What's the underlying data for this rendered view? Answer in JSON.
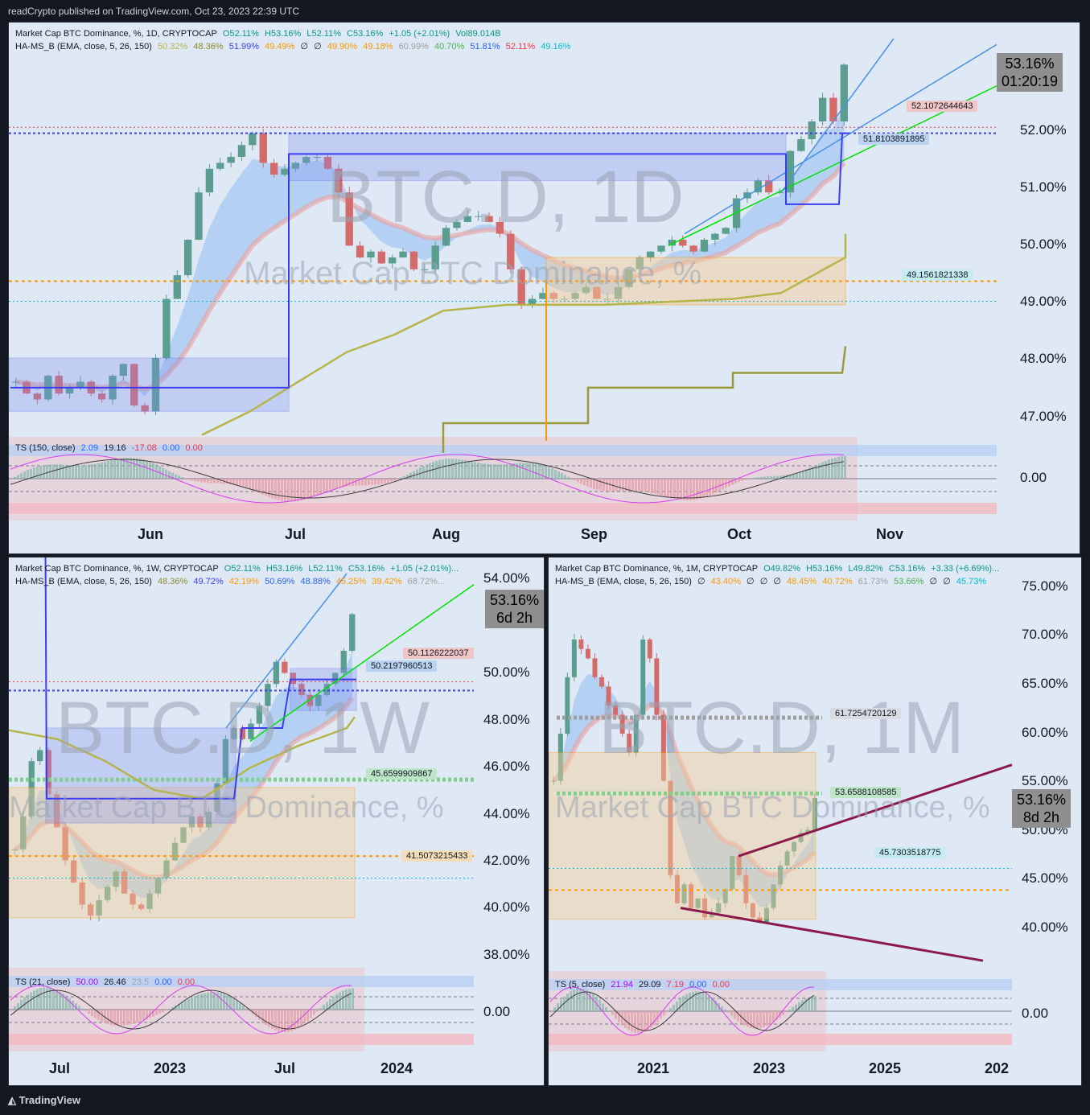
{
  "header": {
    "published": "readCrypto published on TradingView.com, Oct 23, 2023 22:39 UTC"
  },
  "footer": {
    "brand": "TradingView"
  },
  "colors": {
    "background": "#131722",
    "panel": "#dfe9f5",
    "up": "#5b9e8f",
    "down": "#d36b6b",
    "box": "#7e8ef0",
    "orange": "#ff9800",
    "olive": "#b5b54a",
    "green": "#00e000",
    "blue": "#4a90e2",
    "maroon": "#8b1a4a"
  },
  "chart_data": [
    {
      "type": "candlestick",
      "title": "Market Cap BTC Dominance, %, 1D, CRYPTOCAP",
      "ohlc_text": {
        "o": "O52.11%",
        "h": "H53.16%",
        "l": "L52.11%",
        "c": "C53.16%",
        "chg": "+1.05 (+2.01%)",
        "vol": "Vol89.014B"
      },
      "indicator": "HA-MS_B (EMA, close, 5, 26, 150)",
      "indicator_values": [
        "50.32%",
        "48.36%",
        "51.99%",
        "49.49%",
        "∅",
        "∅",
        "49.90%",
        "49.18%",
        "60.99%",
        "40.70%",
        "51.81%",
        "52.11%",
        "49.16%"
      ],
      "watermark": "BTC.D, 1D",
      "watermark2": "Market Cap BTC Dominance, %",
      "price_axis": [
        "52.00%",
        "51.00%",
        "50.00%",
        "49.00%",
        "48.00%",
        "47.00%"
      ],
      "osc_axis": [
        "0.00"
      ],
      "time_axis": [
        "Jun",
        "Jul",
        "Aug",
        "Sep",
        "Oct",
        "Nov"
      ],
      "current": {
        "price": "53.16%",
        "countdown": "01:20:19"
      },
      "levels": [
        "52.1072644643",
        "51.8103891895",
        "49.1561821338"
      ],
      "oscillator": {
        "name": "TS (150, close)",
        "values": [
          "2.09",
          "19.16",
          "-17.08",
          "0.00",
          "0.00"
        ]
      },
      "close_series": [
        47.8,
        47.6,
        47.5,
        47.9,
        47.6,
        47.7,
        47.8,
        47.6,
        47.5,
        47.9,
        48.1,
        47.4,
        47.3,
        48.2,
        49.2,
        49.6,
        50.2,
        51.0,
        51.4,
        51.5,
        51.6,
        51.8,
        52.0,
        51.5,
        51.3,
        51.4,
        51.5,
        51.6,
        51.6,
        51.4,
        51.0,
        50.1,
        49.9,
        50.0,
        49.8,
        49.9,
        50.0,
        49.7,
        49.7,
        50.1,
        50.4,
        50.5,
        50.6,
        50.6,
        50.5,
        50.3,
        49.7,
        49.1,
        49.2,
        49.3,
        49.2,
        49.2,
        49.3,
        49.4,
        49.2,
        49.2,
        49.4,
        49.7,
        49.9,
        50.0,
        50.1,
        50.2,
        50.1,
        50.0,
        50.2,
        50.3,
        50.4,
        50.9,
        51.0,
        51.2,
        51.0,
        51.0,
        51.7,
        51.9,
        52.2,
        52.6,
        52.2,
        53.16
      ],
      "ylim": [
        46.8,
        53.6
      ]
    },
    {
      "type": "candlestick",
      "title": "Market Cap BTC Dominance, %, 1W, CRYPTOCAP",
      "ohlc_text": {
        "o": "O52.11%",
        "h": "H53.16%",
        "l": "L52.11%",
        "c": "C53.16%",
        "chg": "+1.05 (+2.01%)..."
      },
      "indicator": "HA-MS_B (EMA, close, 5, 26, 150)",
      "indicator_values": [
        "48.36%",
        "49.72%",
        "42.19%",
        "50.69%",
        "48.88%",
        "45.25%",
        "39.42%",
        "68.72%..."
      ],
      "watermark": "BTC.D, 1W",
      "watermark2": "Market Cap BTC Dominance, %",
      "price_axis": [
        "54.00%",
        "50.00%",
        "48.00%",
        "46.00%",
        "44.00%",
        "42.00%",
        "40.00%",
        "38.00%"
      ],
      "osc_axis": [
        "0.00"
      ],
      "time_axis": [
        "Jul",
        "2023",
        "Jul",
        "2024"
      ],
      "current": {
        "price": "53.16%",
        "countdown": "6d 2h"
      },
      "levels": [
        "50.1126222037",
        "50.2197960513",
        "45.6599909867",
        "41.5073215433"
      ],
      "oscillator": {
        "name": "TS (21, close)",
        "values": [
          "50.00",
          "26.46",
          "23.5",
          "0.00",
          "0.00"
        ]
      },
      "close_series": [
        42.5,
        44.0,
        46.5,
        47.0,
        45.0,
        43.5,
        42.0,
        41.0,
        40.0,
        39.5,
        40.2,
        40.8,
        41.5,
        40.5,
        40.0,
        39.8,
        40.5,
        41.2,
        42.0,
        42.8,
        43.5,
        44.0,
        43.5,
        44.2,
        45.5,
        47.5,
        48.0,
        47.5,
        48.2,
        49.0,
        50.0,
        51.0,
        50.5,
        50.0,
        49.5,
        49.0,
        49.5,
        50.0,
        50.5,
        51.5,
        53.16
      ],
      "ylim": [
        37.5,
        55.0
      ]
    },
    {
      "type": "candlestick",
      "title": "Market Cap BTC Dominance, %, 1M, CRYPTOCAP",
      "ohlc_text": {
        "o": "O49.82%",
        "h": "H53.16%",
        "l": "L49.82%",
        "c": "C53.16%",
        "chg": "+3.33 (+6.69%)..."
      },
      "indicator": "HA-MS_B (EMA, close, 5, 26, 150)",
      "indicator_values": [
        "∅",
        "43.40%",
        "∅",
        "∅",
        "∅",
        "48.45%",
        "40.72%",
        "61.73%",
        "53.66%",
        "∅",
        "∅",
        "45.73%"
      ],
      "watermark": "BTC.D, 1M",
      "watermark2": "Market Cap BTC Dominance, %",
      "price_axis": [
        "75.00%",
        "70.00%",
        "65.00%",
        "60.00%",
        "55.00%",
        "50.00%",
        "45.00%",
        "40.00%"
      ],
      "osc_axis": [
        "0.00"
      ],
      "time_axis": [
        "2021",
        "2023",
        "2025",
        "202"
      ],
      "current": {
        "price": "53.16%",
        "countdown": "8d 2h"
      },
      "levels": [
        "61.7254720129",
        "53.6588108585",
        "45.7303518775"
      ],
      "oscillator": {
        "name": "TS (5, close)",
        "values": [
          "21.94",
          "29.09",
          "7.19",
          "0.00",
          "0.00"
        ]
      },
      "close_series": [
        55.0,
        60.0,
        66.0,
        70.0,
        69.0,
        68.0,
        66.0,
        65.0,
        63.0,
        62.0,
        60.0,
        58.0,
        62.0,
        70.0,
        68.0,
        62.0,
        55.0,
        45.0,
        42.0,
        44.0,
        41.5,
        42.5,
        40.5,
        41.0,
        42.0,
        43.5,
        47.0,
        45.0,
        42.0,
        40.5,
        40.0,
        41.5,
        44.0,
        46.0,
        47.5,
        48.5,
        49.5,
        49.8,
        53.16
      ],
      "ylim": [
        36.0,
        77.0
      ]
    }
  ]
}
